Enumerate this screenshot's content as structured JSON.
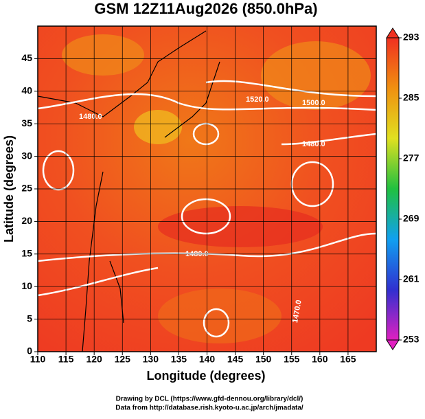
{
  "chart_data": {
    "type": "map",
    "title": "GSM 12Z11Aug2026 (850.0hPa)",
    "xlabel": "Longitude (degrees)",
    "ylabel": "Latitude  (degrees)",
    "xlim": [
      110,
      170
    ],
    "ylim": [
      0,
      50
    ],
    "xticks": [
      110,
      115,
      120,
      125,
      130,
      135,
      140,
      145,
      150,
      155,
      160,
      165
    ],
    "yticks": [
      0,
      5,
      10,
      15,
      20,
      25,
      30,
      35,
      40,
      45
    ],
    "grid": true,
    "colorbar": {
      "lim": [
        253,
        293
      ],
      "ticks": [
        253,
        261,
        269,
        277,
        285,
        293
      ],
      "colors": [
        "#e020c0",
        "#3030d0",
        "#10a0f0",
        "#20c040",
        "#e0e020",
        "#f09010",
        "#f03020"
      ]
    },
    "contour_labels": [
      "1480.0",
      "1520.0",
      "1500.0",
      "1480.0",
      "1480.0",
      "1470.0"
    ],
    "footer": [
      "Drawing by DCL (https://www.gfd-dennou.org/library/dcl/)",
      "Data from http://database.rish.kyoto-u.ac.jp/arch/jmadata/"
    ]
  }
}
